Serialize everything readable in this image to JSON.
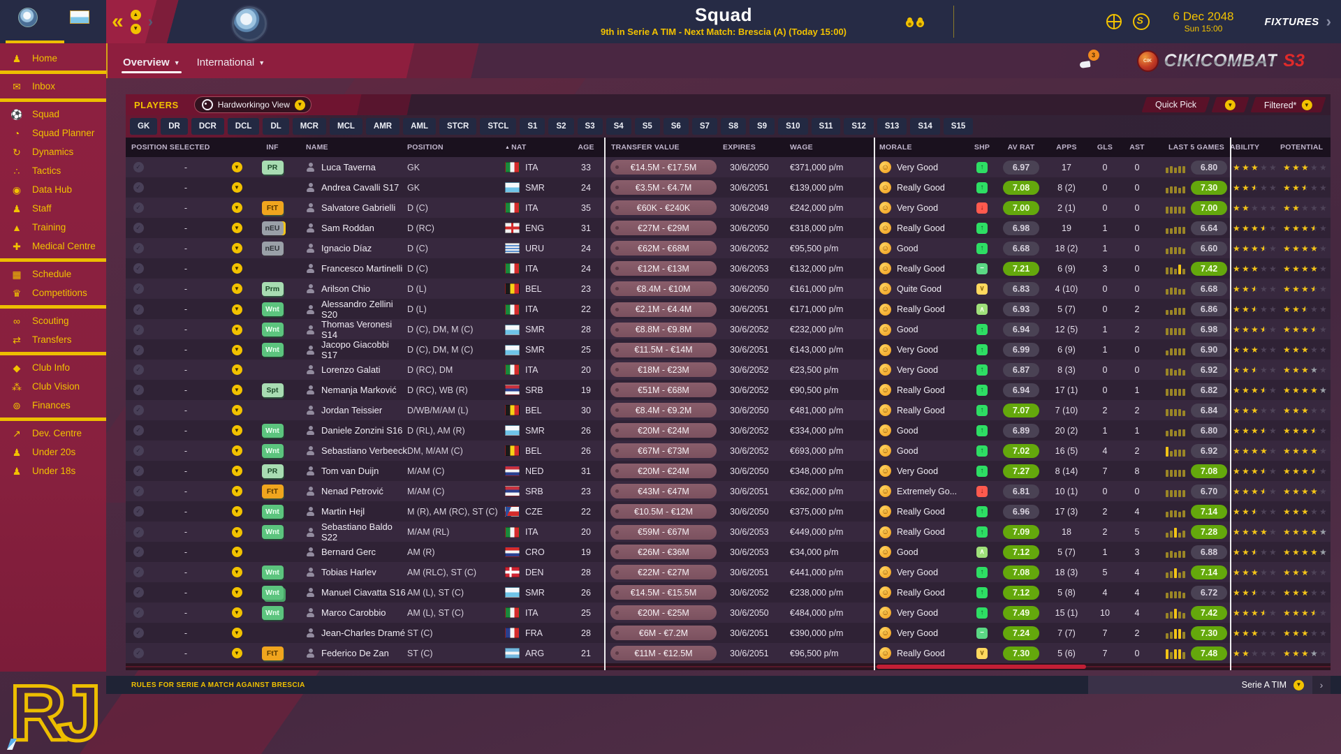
{
  "topbar": {
    "title": "Squad",
    "subtitle": "9th in Serie A TIM - Next Match: Brescia (A) (Today 15:00)",
    "date": "6 Dec 2048",
    "time": "Sun 15:00",
    "fixtures_label": "FIXTURES",
    "notification_count": "3",
    "brand_text": "CIKICOMBAT",
    "brand_accent": "S3",
    "brand_badge": "CIK"
  },
  "tabs": [
    {
      "label": "Overview",
      "active": true
    },
    {
      "label": "International",
      "active": false
    }
  ],
  "sidebar": {
    "items": [
      {
        "label": "Home",
        "icon": "person"
      },
      {
        "divider": true
      },
      {
        "label": "Inbox",
        "icon": "mail"
      },
      {
        "divider": true
      },
      {
        "label": "Squad",
        "icon": "shirt"
      },
      {
        "label": "Squad Planner",
        "icon": "clock"
      },
      {
        "label": "Dynamics",
        "icon": "sync"
      },
      {
        "label": "Tactics",
        "icon": "pitch"
      },
      {
        "label": "Data Hub",
        "icon": "disc"
      },
      {
        "label": "Staff",
        "icon": "people"
      },
      {
        "label": "Training",
        "icon": "cone"
      },
      {
        "label": "Medical Centre",
        "icon": "medkit"
      },
      {
        "divider": true
      },
      {
        "label": "Schedule",
        "icon": "calendar"
      },
      {
        "label": "Competitions",
        "icon": "trophy"
      },
      {
        "divider": true
      },
      {
        "label": "Scouting",
        "icon": "binoculars"
      },
      {
        "label": "Transfers",
        "icon": "transfer"
      },
      {
        "divider": true
      },
      {
        "label": "Club Info",
        "icon": "shield"
      },
      {
        "label": "Club Vision",
        "icon": "vision"
      },
      {
        "label": "Finances",
        "icon": "coins"
      },
      {
        "divider": true
      },
      {
        "label": "Dev. Centre",
        "icon": "growth"
      },
      {
        "label": "Under 20s",
        "icon": "u20"
      },
      {
        "label": "Under 18s",
        "icon": "u18"
      }
    ]
  },
  "toolbar": {
    "players_label": "PLAYERS",
    "view_label": "Hardworkingo View",
    "quick_pick_label": "Quick Pick",
    "filtered_label": "Filtered*"
  },
  "filters": [
    "GK",
    "DR",
    "DCR",
    "DCL",
    "DL",
    "MCR",
    "MCL",
    "AMR",
    "AML",
    "STCR",
    "STCL",
    "S1",
    "S2",
    "S3",
    "S4",
    "S5",
    "S6",
    "S7",
    "S8",
    "S9",
    "S10",
    "S11",
    "S12",
    "S13",
    "S14",
    "S15"
  ],
  "footer": {
    "rules_text": "RULES FOR SERIE A MATCH AGAINST BRESCIA",
    "league_label": "Serie A TIM"
  },
  "logo_letters": "RJ",
  "colors": {
    "accent_yellow": "#f2c200",
    "crimson": "#8e1e3e",
    "dark_ink": "#262b45",
    "rating_green": "#64a80c",
    "scroll_red": "#c21f35"
  },
  "table": {
    "dash": "-",
    "sorted_column": "NAT",
    "columns": [
      "POSITION SELECTED",
      "INF",
      "NAME",
      "POSITION",
      "NAT",
      "AGE",
      "TRANSFER VALUE",
      "EXPIRES",
      "WAGE",
      "MORALE",
      "SHP",
      "AV RAT",
      "APPS",
      "GLS",
      "AST",
      "LAST 5 GAMES",
      "ABILITY",
      "POTENTIAL"
    ],
    "rows": [
      {
        "inf": "PR",
        "name": "Luca Taverna",
        "pos": "GK",
        "nat": "ITA",
        "age": 33,
        "value": "€14.5M - €17.5M",
        "exp": "30/6/2050",
        "wage": "€371,000 p/m",
        "mor": "Very Good",
        "shp": "up",
        "avr": "6.97",
        "apps": "17",
        "gls": "0",
        "ast": "0",
        "bars": [
          2,
          3,
          2,
          3,
          3
        ],
        "l5": "6.80",
        "ab": 3,
        "po": 3
      },
      {
        "inf": null,
        "name": "Andrea Cavalli S17",
        "pos": "GK",
        "nat": "SMR",
        "age": 24,
        "value": "€3.5M - €4.7M",
        "exp": "30/6/2051",
        "wage": "€139,000 p/m",
        "mor": "Really Good",
        "shp": "up",
        "avr": "7.08",
        "apps": "8 (2)",
        "gls": "0",
        "ast": "0",
        "bars": [
          2,
          3,
          3,
          2,
          3
        ],
        "l5": "7.30",
        "ab": 2.5,
        "po": 2.5
      },
      {
        "inf": "FtT",
        "name": "Salvatore Gabrielli",
        "pos": "D (C)",
        "nat": "ITA",
        "age": 35,
        "value": "€60K - €240K",
        "exp": "30/6/2049",
        "wage": "€242,000 p/m",
        "mor": "Very Good",
        "shp": "down",
        "avr": "7.00",
        "apps": "2 (1)",
        "gls": "0",
        "ast": "0",
        "bars": [
          3,
          3,
          3,
          3,
          3
        ],
        "l5": "7.00",
        "ab": 2,
        "po": 2
      },
      {
        "inf": "nEU",
        "hl": true,
        "name": "Sam Roddan",
        "pos": "D (RC)",
        "nat": "ENG",
        "age": 31,
        "value": "€27M - €29M",
        "exp": "30/6/2050",
        "wage": "€318,000 p/m",
        "mor": "Really Good",
        "shp": "up",
        "avr": "6.98",
        "apps": "19",
        "gls": "1",
        "ast": "0",
        "bars": [
          2,
          2,
          3,
          3,
          3
        ],
        "l5": "6.64",
        "ab": 3.5,
        "po": 3.5
      },
      {
        "inf": "nEU",
        "name": "Ignacio Díaz",
        "pos": "D (C)",
        "nat": "URU",
        "age": 24,
        "value": "€62M - €68M",
        "exp": "30/6/2052",
        "wage": "€95,500 p/m",
        "mor": "Good",
        "shp": "up",
        "avr": "6.68",
        "apps": "18 (2)",
        "gls": "1",
        "ast": "0",
        "bars": [
          2,
          3,
          3,
          3,
          2
        ],
        "l5": "6.60",
        "ab": 3.5,
        "po": 4
      },
      {
        "inf": null,
        "name": "Francesco Martinelli",
        "pos": "D (C)",
        "nat": "ITA",
        "age": 24,
        "value": "€12M - €13M",
        "exp": "30/6/2053",
        "wage": "€132,000 p/m",
        "mor": "Really Good",
        "shp": "minus",
        "avr": "7.21",
        "apps": "6 (9)",
        "gls": "3",
        "ast": "0",
        "bars": [
          3,
          3,
          2,
          5,
          2
        ],
        "l5": "7.42",
        "ab": 3,
        "po": 4
      },
      {
        "inf": "Prm",
        "name": "Arilson Chio",
        "pos": "D (L)",
        "nat": "BEL",
        "age": 23,
        "value": "€8.4M - €10M",
        "exp": "30/6/2050",
        "wage": "€161,000 p/m",
        "mor": "Quite Good",
        "shp": "chdown",
        "avr": "6.83",
        "apps": "4 (10)",
        "gls": "0",
        "ast": "0",
        "bars": [
          2,
          3,
          3,
          2,
          2
        ],
        "l5": "6.68",
        "ab": 2.5,
        "po": 3.5
      },
      {
        "inf": "Wnt",
        "name": "Alessandro Zellini S20",
        "pos": "D (L)",
        "nat": "ITA",
        "age": 22,
        "value": "€2.1M - €4.4M",
        "exp": "30/6/2051",
        "wage": "€171,000 p/m",
        "mor": "Really Good",
        "shp": "chup",
        "avr": "6.93",
        "apps": "5 (7)",
        "gls": "0",
        "ast": "2",
        "bars": [
          2,
          2,
          3,
          3,
          3
        ],
        "l5": "6.86",
        "ab": 2.5,
        "po": 2.5
      },
      {
        "inf": "Wnt",
        "name": "Thomas Veronesi S14",
        "pos": "D (C), DM, M (C)",
        "nat": "SMR",
        "age": 28,
        "value": "€8.8M - €9.8M",
        "exp": "30/6/2052",
        "wage": "€232,000 p/m",
        "mor": "Good",
        "shp": "up",
        "avr": "6.94",
        "apps": "12 (5)",
        "gls": "1",
        "ast": "2",
        "bars": [
          3,
          3,
          3,
          3,
          3
        ],
        "l5": "6.98",
        "ab": 3.5,
        "po": 3.5
      },
      {
        "inf": "Wnt",
        "name": "Jacopo Giacobbi S17",
        "pos": "D (C), DM, M (C)",
        "nat": "SMR",
        "age": 25,
        "value": "€11.5M - €14M",
        "exp": "30/6/2051",
        "wage": "€143,000 p/m",
        "mor": "Very Good",
        "shp": "up",
        "avr": "6.99",
        "apps": "6 (9)",
        "gls": "1",
        "ast": "0",
        "bars": [
          2,
          3,
          3,
          3,
          3
        ],
        "l5": "6.90",
        "ab": 3,
        "po": 3
      },
      {
        "inf": null,
        "name": "Lorenzo Galati",
        "pos": "D (RC), DM",
        "nat": "ITA",
        "age": 20,
        "value": "€18M - €23M",
        "exp": "30/6/2052",
        "wage": "€23,500 p/m",
        "mor": "Very Good",
        "shp": "up",
        "avr": "6.87",
        "apps": "8 (3)",
        "gls": "0",
        "ast": "0",
        "bars": [
          3,
          3,
          2,
          3,
          2
        ],
        "l5": "6.92",
        "ab": 2.5,
        "po": 3,
        "pg": true
      },
      {
        "inf": "Spt",
        "name": "Nemanja Marković",
        "pos": "D (RC), WB (R)",
        "nat": "SRB",
        "age": 19,
        "value": "€51M - €68M",
        "exp": "30/6/2052",
        "wage": "€90,500 p/m",
        "mor": "Really Good",
        "shp": "up",
        "avr": "6.94",
        "apps": "17 (1)",
        "gls": "0",
        "ast": "1",
        "bars": [
          3,
          3,
          3,
          3,
          3
        ],
        "l5": "6.82",
        "ab": 3.5,
        "po": 4,
        "pg": true
      },
      {
        "inf": null,
        "name": "Jordan Teissier",
        "pos": "D/WB/M/AM (L)",
        "nat": "BEL",
        "age": 30,
        "value": "€8.4M - €9.2M",
        "exp": "30/6/2050",
        "wage": "€481,000 p/m",
        "mor": "Really Good",
        "shp": "up",
        "avr": "7.07",
        "apps": "7 (10)",
        "gls": "2",
        "ast": "2",
        "bars": [
          3,
          3,
          3,
          3,
          2
        ],
        "l5": "6.84",
        "ab": 3,
        "po": 3
      },
      {
        "inf": "Wnt",
        "name": "Daniele Zonzini S16",
        "pos": "D (RL), AM (R)",
        "nat": "SMR",
        "age": 26,
        "value": "€20M - €24M",
        "exp": "30/6/2052",
        "wage": "€334,000 p/m",
        "mor": "Good",
        "shp": "up",
        "avr": "6.89",
        "apps": "20 (2)",
        "gls": "1",
        "ast": "1",
        "bars": [
          2,
          3,
          2,
          3,
          3
        ],
        "l5": "6.80",
        "ab": 3.5,
        "po": 3.5
      },
      {
        "inf": "Wnt",
        "name": "Sebastiano Verbeeck",
        "pos": "DM, M/AM (C)",
        "nat": "BEL",
        "age": 26,
        "value": "€67M - €73M",
        "exp": "30/6/2052",
        "wage": "€693,000 p/m",
        "mor": "Good",
        "shp": "up",
        "avr": "7.02",
        "apps": "16 (5)",
        "gls": "4",
        "ast": "2",
        "bars": [
          5,
          2,
          3,
          3,
          3
        ],
        "l5": "6.92",
        "ab": 4,
        "po": 4
      },
      {
        "inf": "PR",
        "name": "Tom van Duijn",
        "pos": "M/AM (C)",
        "nat": "NED",
        "age": 31,
        "value": "€20M - €24M",
        "exp": "30/6/2050",
        "wage": "€348,000 p/m",
        "mor": "Very Good",
        "shp": "up",
        "avr": "7.27",
        "apps": "8 (14)",
        "gls": "7",
        "ast": "8",
        "bars": [
          3,
          3,
          3,
          3,
          3
        ],
        "l5": "7.08",
        "ab": 3.5,
        "po": 3.5
      },
      {
        "inf": "FtT",
        "name": "Nenad Petrović",
        "pos": "M/AM (C)",
        "nat": "SRB",
        "age": 23,
        "value": "€43M - €47M",
        "exp": "30/6/2051",
        "wage": "€362,000 p/m",
        "mor": "Extremely Go...",
        "shp": "down",
        "avr": "6.81",
        "apps": "10 (1)",
        "gls": "0",
        "ast": "0",
        "bars": [
          3,
          3,
          3,
          3,
          3
        ],
        "l5": "6.70",
        "ab": 3.5,
        "po": 4
      },
      {
        "inf": "Wnt",
        "name": "Martin Hejl",
        "pos": "M (R), AM (RC), ST (C)",
        "nat": "CZE",
        "age": 22,
        "value": "€10.5M - €12M",
        "exp": "30/6/2050",
        "wage": "€375,000 p/m",
        "mor": "Really Good",
        "shp": "up",
        "avr": "6.96",
        "apps": "17 (3)",
        "gls": "2",
        "ast": "4",
        "bars": [
          2,
          3,
          3,
          2,
          3
        ],
        "l5": "7.14",
        "ab": 2.5,
        "po": 3
      },
      {
        "inf": "Wnt",
        "name": "Sebastiano Baldo S22",
        "pos": "M/AM (RL)",
        "nat": "ITA",
        "age": 20,
        "value": "€59M - €67M",
        "exp": "30/6/2053",
        "wage": "€449,000 p/m",
        "mor": "Really Good",
        "shp": "up",
        "avr": "7.09",
        "apps": "18",
        "gls": "2",
        "ast": "5",
        "bars": [
          2,
          3,
          5,
          2,
          3
        ],
        "l5": "7.28",
        "ab": 4,
        "po": 4,
        "pg": true
      },
      {
        "inf": null,
        "name": "Bernard Gerc",
        "pos": "AM (R)",
        "nat": "CRO",
        "age": 19,
        "value": "€26M - €36M",
        "exp": "30/6/2053",
        "wage": "€34,000 p/m",
        "mor": "Good",
        "shp": "chup",
        "avr": "7.12",
        "apps": "5 (7)",
        "gls": "1",
        "ast": "3",
        "bars": [
          2,
          3,
          2,
          3,
          3
        ],
        "l5": "6.88",
        "ab": 2.5,
        "po": 4,
        "pg": true
      },
      {
        "inf": "Wnt",
        "name": "Tobias Harlev",
        "pos": "AM (RLC), ST (C)",
        "nat": "DEN",
        "age": 28,
        "value": "€22M - €27M",
        "exp": "30/6/2051",
        "wage": "€441,000 p/m",
        "mor": "Very Good",
        "shp": "up",
        "avr": "7.08",
        "apps": "18 (3)",
        "gls": "5",
        "ast": "4",
        "bars": [
          2,
          3,
          5,
          2,
          3
        ],
        "l5": "7.14",
        "ab": 3,
        "po": 3
      },
      {
        "inf": "Wnt",
        "st": true,
        "name": "Manuel Ciavatta S16",
        "pos": "AM (L), ST (C)",
        "nat": "SMR",
        "age": 26,
        "value": "€14.5M - €15.5M",
        "exp": "30/6/2052",
        "wage": "€238,000 p/m",
        "mor": "Really Good",
        "shp": "up",
        "avr": "7.12",
        "apps": "5 (8)",
        "gls": "4",
        "ast": "4",
        "bars": [
          2,
          3,
          3,
          3,
          2
        ],
        "l5": "6.72",
        "ab": 2.5,
        "po": 3
      },
      {
        "inf": "Wnt",
        "name": "Marco Carobbio",
        "pos": "AM (L), ST (C)",
        "nat": "ITA",
        "age": 25,
        "value": "€20M - €25M",
        "exp": "30/6/2050",
        "wage": "€484,000 p/m",
        "mor": "Very Good",
        "shp": "up",
        "avr": "7.49",
        "apps": "15 (1)",
        "gls": "10",
        "ast": "4",
        "bars": [
          2,
          3,
          5,
          3,
          2
        ],
        "l5": "7.42",
        "ab": 3.5,
        "po": 3.5
      },
      {
        "inf": null,
        "name": "Jean-Charles Dramé",
        "pos": "ST (C)",
        "nat": "FRA",
        "age": 28,
        "value": "€6M - €7.2M",
        "exp": "30/6/2051",
        "wage": "€390,000 p/m",
        "mor": "Very Good",
        "shp": "minus",
        "avr": "7.24",
        "apps": "7 (7)",
        "gls": "7",
        "ast": "2",
        "bars": [
          2,
          3,
          5,
          5,
          3
        ],
        "l5": "7.30",
        "ab": 3,
        "po": 3
      },
      {
        "inf": "FtT",
        "name": "Federico De Zan",
        "pos": "ST (C)",
        "nat": "ARG",
        "age": 21,
        "value": "€11M - €12.5M",
        "exp": "30/6/2051",
        "wage": "€96,500 p/m",
        "mor": "Really Good",
        "shp": "chdown",
        "avr": "7.30",
        "apps": "5 (6)",
        "gls": "7",
        "ast": "0",
        "bars": [
          5,
          3,
          5,
          5,
          3
        ],
        "l5": "7.48",
        "ab": 2,
        "po": 3,
        "pg": true
      }
    ]
  }
}
